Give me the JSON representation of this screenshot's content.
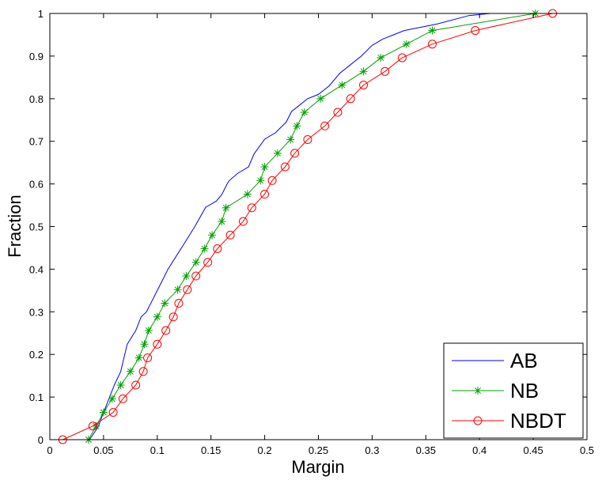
{
  "chart_data": {
    "type": "line",
    "title": "",
    "xlabel": "Margin",
    "ylabel": "Fraction",
    "xlim": [
      0,
      0.5
    ],
    "ylim": [
      0,
      1
    ],
    "x_ticks": [
      "0",
      "0.05",
      "0.1",
      "0.15",
      "0.2",
      "0.25",
      "0.3",
      "0.35",
      "0.4",
      "0.45",
      "0.5"
    ],
    "y_ticks": [
      "0",
      "0.1",
      "0.2",
      "0.3",
      "0.4",
      "0.5",
      "0.6",
      "0.7",
      "0.8",
      "0.9",
      "1"
    ],
    "grid": false,
    "legend_position": "bottom-right",
    "series": [
      {
        "name": "AB",
        "color": "#0000ff",
        "marker": "none",
        "x": [
          0.037,
          0.045,
          0.05,
          0.06,
          0.066,
          0.072,
          0.08,
          0.085,
          0.09,
          0.1,
          0.11,
          0.12,
          0.125,
          0.135,
          0.145,
          0.155,
          0.16,
          0.165,
          0.167,
          0.175,
          0.185,
          0.19,
          0.2,
          0.21,
          0.22,
          0.225,
          0.24,
          0.25,
          0.26,
          0.27,
          0.28,
          0.29,
          0.3,
          0.31,
          0.32,
          0.33,
          0.36,
          0.39,
          0.41
        ],
        "y": [
          0.0,
          0.03,
          0.064,
          0.128,
          0.16,
          0.224,
          0.256,
          0.288,
          0.3,
          0.35,
          0.4,
          0.44,
          0.46,
          0.5,
          0.545,
          0.56,
          0.575,
          0.6,
          0.608,
          0.625,
          0.64,
          0.67,
          0.705,
          0.72,
          0.745,
          0.77,
          0.8,
          0.81,
          0.83,
          0.86,
          0.88,
          0.9,
          0.925,
          0.94,
          0.95,
          0.96,
          0.975,
          0.995,
          1.0
        ]
      },
      {
        "name": "NB",
        "color": "#00a000",
        "marker": "star",
        "x": [
          0.036,
          0.043,
          0.05,
          0.058,
          0.066,
          0.075,
          0.083,
          0.088,
          0.092,
          0.1,
          0.107,
          0.119,
          0.127,
          0.136,
          0.144,
          0.151,
          0.16,
          0.164,
          0.184,
          0.196,
          0.2,
          0.212,
          0.224,
          0.23,
          0.237,
          0.252,
          0.272,
          0.292,
          0.308,
          0.332,
          0.356,
          0.452
        ],
        "y": [
          0.0,
          0.032,
          0.064,
          0.096,
          0.128,
          0.16,
          0.192,
          0.224,
          0.256,
          0.288,
          0.32,
          0.352,
          0.384,
          0.416,
          0.448,
          0.48,
          0.512,
          0.544,
          0.576,
          0.608,
          0.64,
          0.672,
          0.704,
          0.736,
          0.768,
          0.8,
          0.832,
          0.864,
          0.896,
          0.928,
          0.96,
          1.0
        ]
      },
      {
        "name": "NBDT",
        "color": "#ff0000",
        "marker": "circle",
        "x": [
          0.012,
          0.04,
          0.059,
          0.068,
          0.08,
          0.087,
          0.091,
          0.1,
          0.108,
          0.115,
          0.12,
          0.128,
          0.136,
          0.147,
          0.156,
          0.168,
          0.18,
          0.188,
          0.2,
          0.207,
          0.219,
          0.228,
          0.24,
          0.256,
          0.268,
          0.28,
          0.292,
          0.312,
          0.328,
          0.356,
          0.396,
          0.468
        ],
        "y": [
          0.0,
          0.032,
          0.064,
          0.096,
          0.128,
          0.16,
          0.192,
          0.224,
          0.256,
          0.288,
          0.32,
          0.352,
          0.384,
          0.416,
          0.448,
          0.48,
          0.512,
          0.544,
          0.576,
          0.608,
          0.64,
          0.672,
          0.704,
          0.736,
          0.768,
          0.8,
          0.832,
          0.864,
          0.896,
          0.928,
          0.96,
          1.0
        ]
      }
    ]
  }
}
